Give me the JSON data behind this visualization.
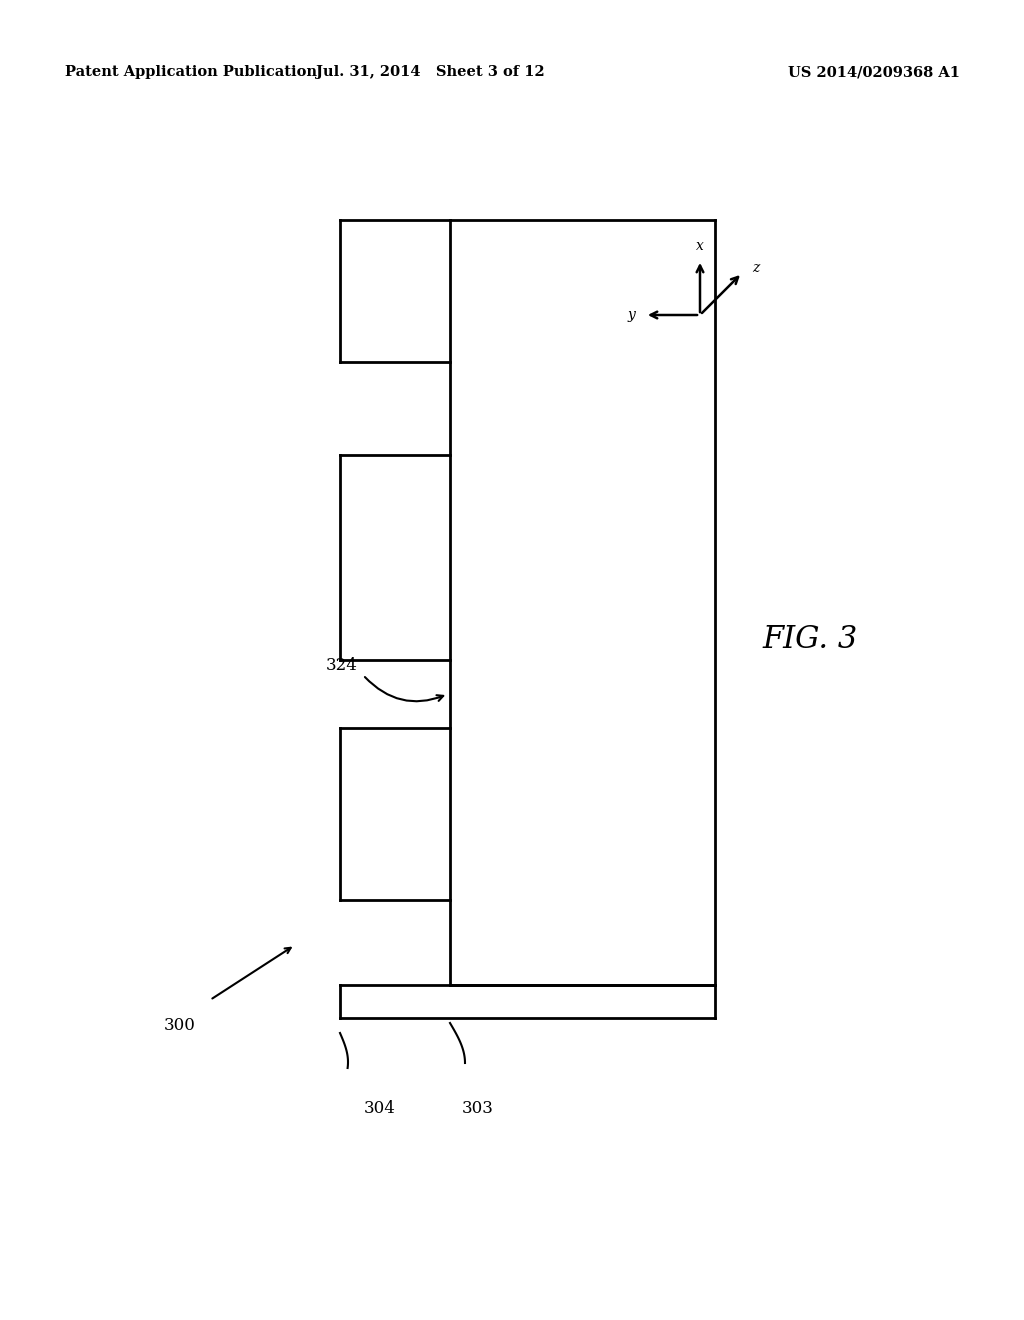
{
  "header_left": "Patent Application Publication",
  "header_mid": "Jul. 31, 2014   Sheet 3 of 12",
  "header_right": "US 2014/0209368 A1",
  "fig_label": "FIG. 3",
  "label_300": "300",
  "label_303": "303",
  "label_304": "304",
  "label_324": "324",
  "bg_color": "#ffffff",
  "line_color": "#000000",
  "header_fontsize": 10.5,
  "label_fontsize": 12,
  "fig_label_fontsize": 22
}
